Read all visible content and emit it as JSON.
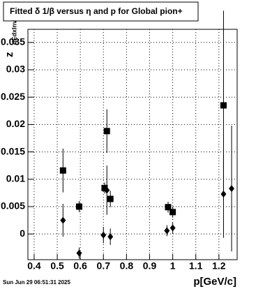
{
  "chart_data": {
    "type": "scatter",
    "title": "Fitted δ 1/β versus η and p for Global pion+",
    "x_label": "p[GeV/c]",
    "y_label": "z",
    "y_label_sub": "dEdxInv",
    "timestamp": "Sun Jun 29 06:51:31 2025",
    "xlim": [
      0.373,
      1.279
    ],
    "ylim": [
      -0.0047,
      0.0374
    ],
    "xticks": [
      0.4,
      0.5,
      0.6,
      0.7,
      0.8,
      0.9,
      1,
      1.1,
      1.2
    ],
    "yticks": [
      0,
      0.005,
      0.01,
      0.015,
      0.02,
      0.025,
      0.03,
      0.035
    ],
    "grid": true,
    "series": [
      {
        "marker": "square",
        "color": "#000000",
        "x": [
          0.525,
          0.595,
          0.705,
          0.715,
          0.73,
          0.98,
          1.0,
          1.22
        ],
        "values": [
          0.0116,
          0.005,
          0.0084,
          0.0188,
          0.0064,
          0.0049,
          0.004,
          0.0235
        ],
        "errors": [
          0.004,
          0.001,
          0.001,
          0.004,
          0.0015,
          0.001,
          0.001,
          0.0173
        ]
      },
      {
        "marker": "diamond",
        "color": "#000000",
        "x": [
          0.525,
          0.595,
          0.7,
          0.715,
          0.73,
          0.975,
          1.0,
          1.22,
          1.255
        ],
        "values": [
          0.0025,
          -0.0035,
          -0.0002,
          0.008,
          -0.0005,
          0.0006,
          0.0011,
          0.0073,
          0.0083
        ],
        "errors": [
          0.003,
          0.001,
          0.0015,
          0.0045,
          0.0015,
          0.001,
          0.001,
          0.008,
          0.0115
        ]
      }
    ]
  }
}
